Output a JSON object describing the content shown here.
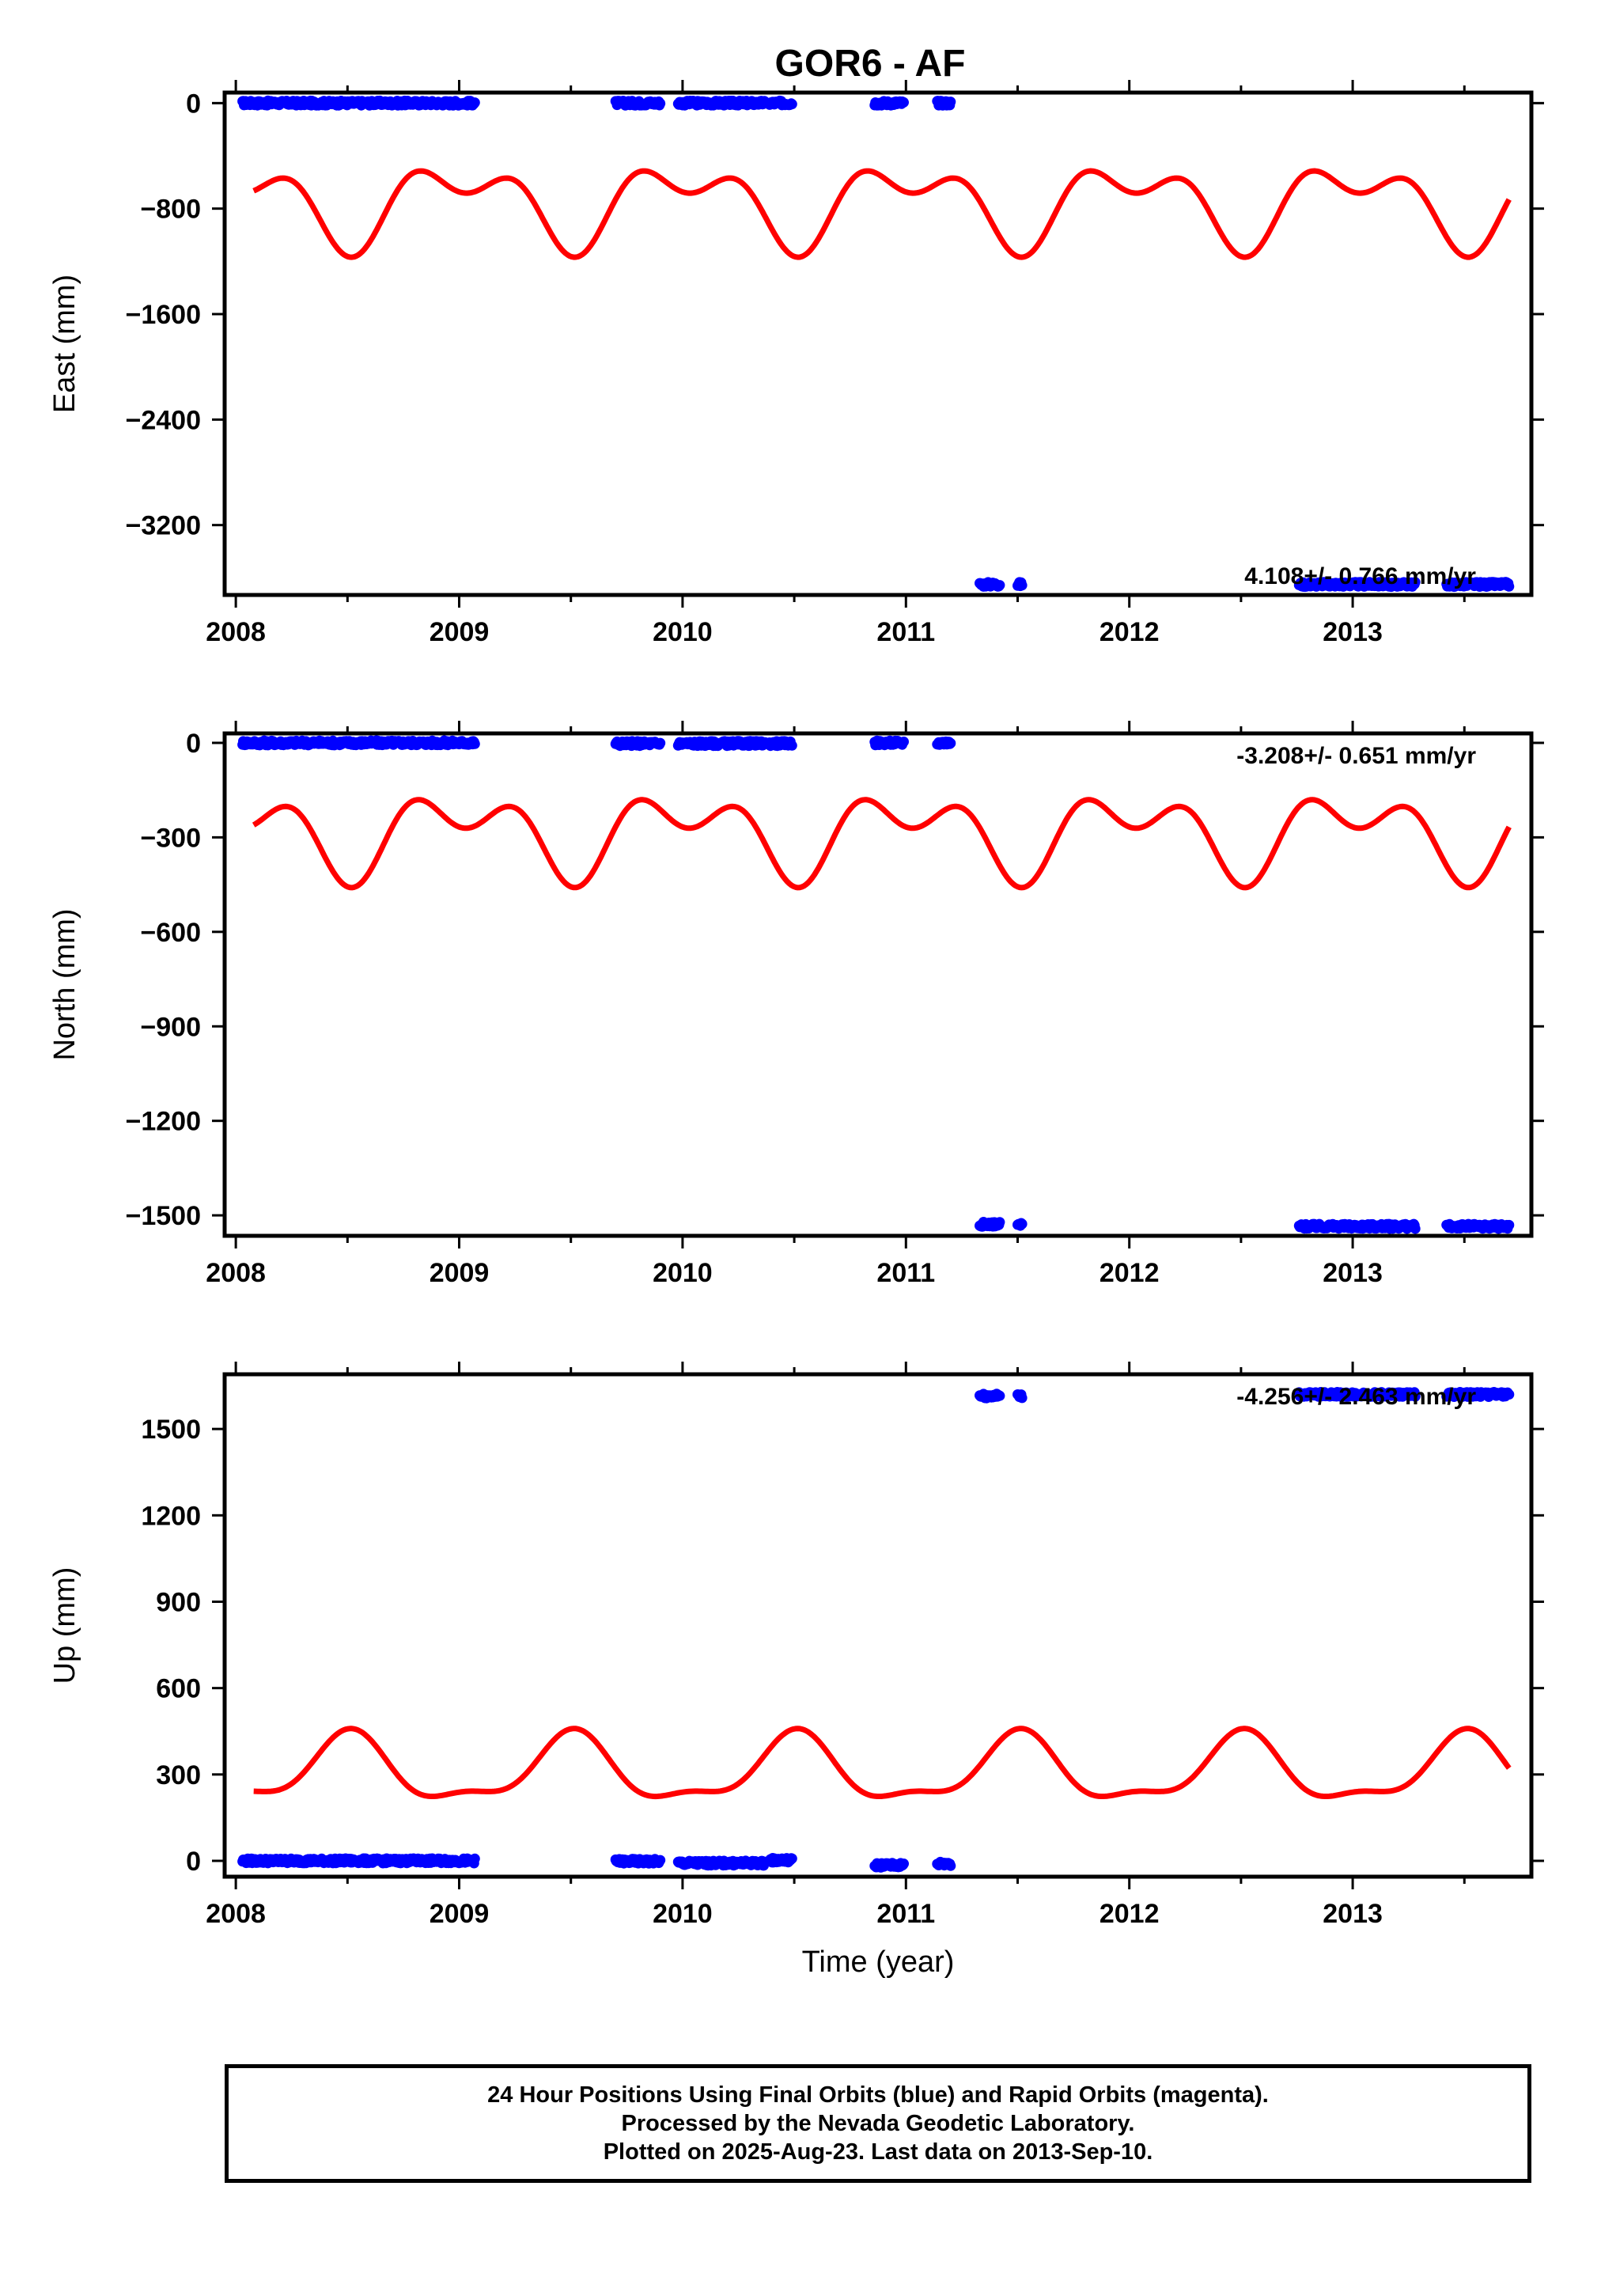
{
  "title": "GOR6 - AF",
  "colors": {
    "final_orbits": "#0000ff",
    "model": "#ff0000",
    "frame": "#000000"
  },
  "chart_data": [
    {
      "type": "scatter",
      "component": "east",
      "ylabel": "East (mm)",
      "xlim": [
        2007.95,
        2013.8
      ],
      "ylim": [
        -3730,
        80
      ],
      "xticks": [
        2008,
        2009,
        2010,
        2011,
        2012,
        2013
      ],
      "xtick_labels": [
        "2008",
        "2009",
        "2010",
        "2011",
        "2012",
        "2013"
      ],
      "yticks": [
        0,
        -800,
        -1600,
        -2400,
        -3200
      ],
      "ytick_labels": [
        "0",
        "−800",
        "−1600",
        "−2400",
        "−3200"
      ],
      "rate_label": "4.108+/- 0.766 mm/yr",
      "rate_position": "bottom-right",
      "segments": [
        {
          "x": [
            2008.03,
            2009.07
          ],
          "y": 0
        },
        {
          "x": [
            2009.7,
            2009.9
          ],
          "y": 0
        },
        {
          "x": [
            2009.98,
            2010.37
          ],
          "y": 0
        },
        {
          "x": [
            2010.39,
            2010.49
          ],
          "y": 0
        },
        {
          "x": [
            2010.86,
            2010.99
          ],
          "y": 0
        },
        {
          "x": [
            2011.14,
            2011.2
          ],
          "y": 0
        },
        {
          "x": [
            2011.33,
            2011.42
          ],
          "y": -3650
        },
        {
          "x": [
            2011.5,
            2011.52
          ],
          "y": -3650
        },
        {
          "x": [
            2012.76,
            2013.28
          ],
          "y": -3650
        },
        {
          "x": [
            2013.42,
            2013.7
          ],
          "y": -3650
        }
      ],
      "model": {
        "center": -755,
        "annual_amp": 245,
        "annual_phase": 1.55,
        "semiannual_amp": 170,
        "semiannual_phase": -1.85,
        "x_start": 2008.08,
        "x_end": 2013.7
      }
    },
    {
      "type": "scatter",
      "component": "north",
      "ylabel": "North (mm)",
      "xlim": [
        2007.95,
        2013.8
      ],
      "ylim": [
        -1565,
        30
      ],
      "xticks": [
        2008,
        2009,
        2010,
        2011,
        2012,
        2013
      ],
      "xtick_labels": [
        "2008",
        "2009",
        "2010",
        "2011",
        "2012",
        "2013"
      ],
      "yticks": [
        0,
        -300,
        -600,
        -900,
        -1200,
        -1500
      ],
      "ytick_labels": [
        "0",
        "−300",
        "−600",
        "−900",
        "−1200",
        "−1500"
      ],
      "rate_label": "-3.208+/- 0.651 mm/yr",
      "rate_position": "top-right",
      "segments": [
        {
          "x": [
            2008.03,
            2009.07
          ],
          "y": 0
        },
        {
          "x": [
            2009.7,
            2009.9
          ],
          "y": -2
        },
        {
          "x": [
            2009.98,
            2010.37
          ],
          "y": -2
        },
        {
          "x": [
            2010.39,
            2010.49
          ],
          "y": -2
        },
        {
          "x": [
            2010.86,
            2010.99
          ],
          "y": 0
        },
        {
          "x": [
            2011.14,
            2011.2
          ],
          "y": 0
        },
        {
          "x": [
            2011.33,
            2011.42
          ],
          "y": -1528
        },
        {
          "x": [
            2011.5,
            2011.52
          ],
          "y": -1530
        },
        {
          "x": [
            2012.76,
            2013.28
          ],
          "y": -1535
        },
        {
          "x": [
            2013.42,
            2013.7
          ],
          "y": -1535
        }
      ],
      "model": {
        "center": -285,
        "annual_amp": 95,
        "annual_phase": 1.55,
        "semiannual_amp": 80,
        "semiannual_phase": -1.85,
        "x_start": 2008.08,
        "x_end": 2013.7
      }
    },
    {
      "type": "scatter",
      "component": "up",
      "ylabel": "Up (mm)",
      "xlim": [
        2007.95,
        2013.8
      ],
      "ylim": [
        -55,
        1690
      ],
      "xticks": [
        2008,
        2009,
        2010,
        2011,
        2012,
        2013
      ],
      "xtick_labels": [
        "2008",
        "2009",
        "2010",
        "2011",
        "2012",
        "2013"
      ],
      "yticks": [
        0,
        300,
        600,
        900,
        1200,
        1500
      ],
      "ytick_labels": [
        "0",
        "300",
        "600",
        "900",
        "1200",
        "1500"
      ],
      "rate_label": "-4.256+/- 2.463 mm/yr",
      "rate_position": "top-right",
      "segments": [
        {
          "x": [
            2008.03,
            2009.07
          ],
          "y": 0
        },
        {
          "x": [
            2009.7,
            2009.9
          ],
          "y": -2
        },
        {
          "x": [
            2009.98,
            2010.37
          ],
          "y": -8
        },
        {
          "x": [
            2010.39,
            2010.49
          ],
          "y": 2
        },
        {
          "x": [
            2010.86,
            2010.99
          ],
          "y": -15
        },
        {
          "x": [
            2011.14,
            2011.2
          ],
          "y": -10
        },
        {
          "x": [
            2011.33,
            2011.42
          ],
          "y": 1615
        },
        {
          "x": [
            2011.5,
            2011.52
          ],
          "y": 1615
        },
        {
          "x": [
            2012.76,
            2013.28
          ],
          "y": 1620
        },
        {
          "x": [
            2013.42,
            2013.7
          ],
          "y": 1620
        }
      ],
      "model": {
        "center": 310,
        "annual_amp": 110,
        "annual_phase": -1.6,
        "semiannual_amp": 40,
        "semiannual_phase": 1.3,
        "x_start": 2008.08,
        "x_end": 2013.7
      }
    }
  ],
  "time_label": "Time (year)",
  "footer": {
    "line1": "24 Hour Positions Using Final Orbits (blue) and Rapid Orbits (magenta).",
    "line2": "Processed by the Nevada Geodetic Laboratory.",
    "line3": "Plotted on 2025-Aug-23. Last data on 2013-Sep-10."
  }
}
